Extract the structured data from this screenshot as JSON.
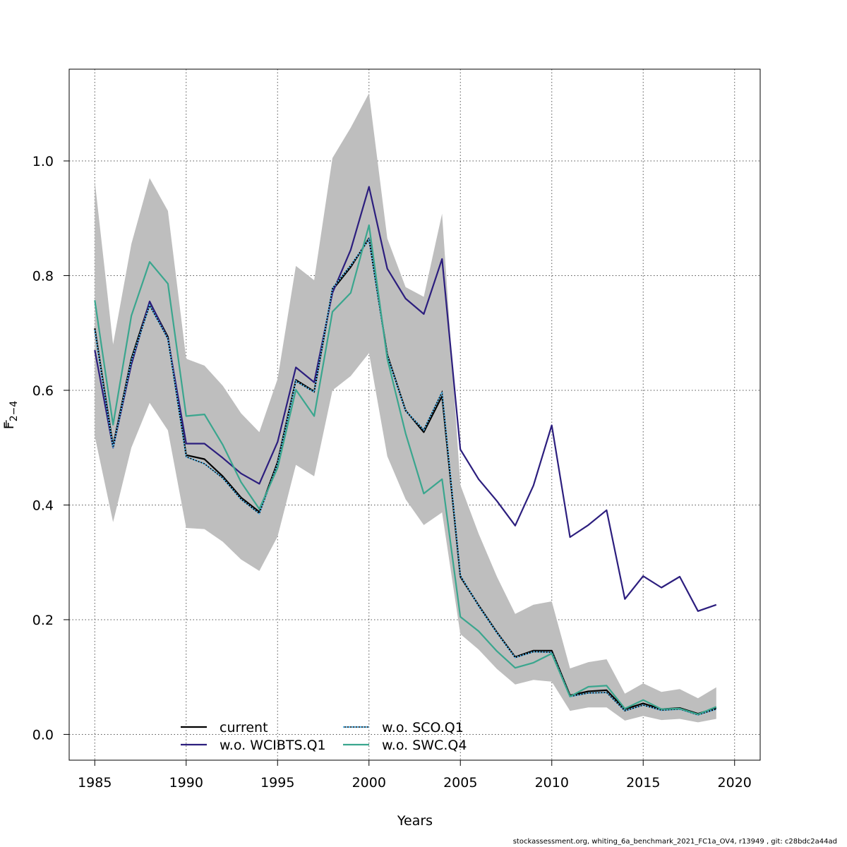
{
  "chart_data": {
    "type": "line",
    "xlabel": "Years",
    "ylabel": "F",
    "ylabel_bar": "_",
    "ylabel_sub": "2−4",
    "xlim": [
      1983.6,
      2021.4
    ],
    "ylim": [
      -0.045,
      1.16
    ],
    "x_ticks": [
      "1985",
      "1990",
      "1995",
      "2000",
      "2005",
      "2010",
      "2015",
      "2020"
    ],
    "y_ticks": [
      "0.0",
      "0.2",
      "0.4",
      "0.6",
      "0.8",
      "1.0"
    ],
    "grid": true,
    "legend_position": "bottom-left",
    "x": [
      1985,
      1986,
      1987,
      1988,
      1989,
      1990,
      1991,
      1992,
      1993,
      1994,
      1995,
      1996,
      1997,
      1998,
      1999,
      2000,
      2001,
      2002,
      2003,
      2004,
      2005,
      2006,
      2007,
      2008,
      2009,
      2010,
      2011,
      2012,
      2013,
      2014,
      2015,
      2016,
      2017,
      2018,
      2019
    ],
    "confidence_band": {
      "lower": [
        0.52,
        0.37,
        0.5,
        0.578,
        0.53,
        0.36,
        0.358,
        0.336,
        0.305,
        0.285,
        0.345,
        0.47,
        0.45,
        0.6,
        0.625,
        0.665,
        0.485,
        0.41,
        0.365,
        0.387,
        0.175,
        0.148,
        0.114,
        0.087,
        0.095,
        0.092,
        0.041,
        0.047,
        0.047,
        0.024,
        0.032,
        0.025,
        0.027,
        0.021,
        0.027
      ],
      "upper": [
        0.965,
        0.68,
        0.855,
        0.97,
        0.913,
        0.655,
        0.643,
        0.608,
        0.56,
        0.527,
        0.62,
        0.817,
        0.792,
        1.005,
        1.058,
        1.118,
        0.865,
        0.78,
        0.763,
        0.908,
        0.435,
        0.35,
        0.275,
        0.21,
        0.226,
        0.232,
        0.115,
        0.126,
        0.131,
        0.071,
        0.089,
        0.074,
        0.079,
        0.063,
        0.082
      ],
      "color": "#bebebe"
    },
    "series": [
      {
        "name": "current",
        "color": "#000000",
        "style": "solid",
        "values": [
          0.708,
          0.503,
          0.655,
          0.754,
          0.693,
          0.487,
          0.48,
          0.45,
          0.413,
          0.388,
          0.475,
          0.618,
          0.598,
          0.775,
          0.815,
          0.865,
          0.662,
          0.565,
          0.527,
          0.59,
          0.275,
          0.225,
          0.178,
          0.135,
          0.146,
          0.146,
          0.068,
          0.075,
          0.077,
          0.044,
          0.054,
          0.044,
          0.046,
          0.036,
          0.046
        ]
      },
      {
        "name": "w.o. WCIBTS.Q1",
        "color": "#2c1e7e",
        "style": "solid",
        "values": [
          0.67,
          0.5,
          0.645,
          0.755,
          0.69,
          0.507,
          0.507,
          0.482,
          0.455,
          0.437,
          0.51,
          0.64,
          0.614,
          0.77,
          0.845,
          0.955,
          0.812,
          0.76,
          0.733,
          0.829,
          0.497,
          0.445,
          0.407,
          0.364,
          0.434,
          0.539,
          0.344,
          0.365,
          0.391,
          0.236,
          0.276,
          0.256,
          0.275,
          0.215,
          0.226
        ]
      },
      {
        "name": "w.o. SCO.Q1",
        "color": "#56b4e9",
        "style": "dotted",
        "values": [
          0.705,
          0.5,
          0.652,
          0.748,
          0.69,
          0.484,
          0.472,
          0.447,
          0.41,
          0.385,
          0.472,
          0.616,
          0.597,
          0.778,
          0.818,
          0.863,
          0.66,
          0.564,
          0.531,
          0.597,
          0.277,
          0.224,
          0.177,
          0.134,
          0.144,
          0.143,
          0.066,
          0.072,
          0.073,
          0.041,
          0.051,
          0.042,
          0.044,
          0.034,
          0.044
        ]
      },
      {
        "name": "w.o. SWC.Q4",
        "color": "#3aa68e",
        "style": "solid",
        "values": [
          0.757,
          0.54,
          0.73,
          0.824,
          0.786,
          0.555,
          0.558,
          0.505,
          0.44,
          0.393,
          0.465,
          0.601,
          0.555,
          0.737,
          0.77,
          0.888,
          0.655,
          0.525,
          0.42,
          0.445,
          0.205,
          0.18,
          0.145,
          0.116,
          0.125,
          0.141,
          0.066,
          0.083,
          0.085,
          0.045,
          0.06,
          0.044,
          0.045,
          0.035,
          0.048
        ]
      }
    ]
  },
  "footer": "stockassessment.org, whiting_6a_benchmark_2021_FC1a_OV4, r13949 , git: c28bdc2a44ad"
}
